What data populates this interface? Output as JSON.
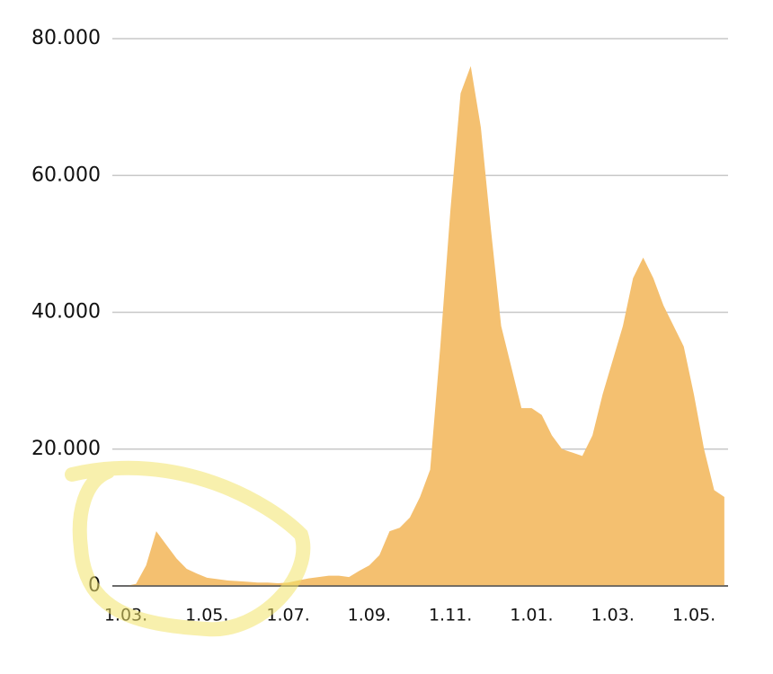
{
  "chart_data": {
    "type": "area",
    "categories": [
      "1.03.",
      null,
      null,
      null,
      null,
      null,
      null,
      null,
      "1.05.",
      null,
      null,
      null,
      null,
      null,
      null,
      null,
      "1.07.",
      null,
      null,
      null,
      null,
      null,
      null,
      null,
      "1.09.",
      null,
      null,
      null,
      null,
      null,
      null,
      null,
      "1.11.",
      null,
      null,
      null,
      null,
      null,
      null,
      null,
      "1.01.",
      null,
      null,
      null,
      null,
      null,
      null,
      null,
      "1.03.",
      null,
      null,
      null,
      null,
      null,
      null,
      null,
      "1.05.",
      null,
      null,
      null
    ],
    "values": [
      0,
      300,
      3000,
      8000,
      6000,
      4000,
      2500,
      1800,
      1200,
      1000,
      800,
      700,
      600,
      500,
      500,
      400,
      500,
      800,
      1100,
      1300,
      1500,
      1500,
      1300,
      2200,
      3000,
      4500,
      8000,
      8500,
      10000,
      13000,
      17000,
      35000,
      55000,
      72000,
      76000,
      67000,
      52000,
      38000,
      32000,
      26000,
      26000,
      25000,
      22000,
      20000,
      19500,
      19000,
      22000,
      28000,
      33000,
      38000,
      45000,
      48000,
      45000,
      41000,
      38000,
      35000,
      28000,
      20000,
      14000,
      13000
    ],
    "color": "#f4c070",
    "ylim": [
      0,
      80000
    ],
    "yticks": [
      0,
      {
        "value": 20000,
        "label": "20.000"
      },
      {
        "value": 40000,
        "label": "40.000"
      },
      {
        "value": 60000,
        "label": "60.000"
      },
      {
        "value": 80000,
        "label": "80.000"
      }
    ],
    "grid": true
  }
}
